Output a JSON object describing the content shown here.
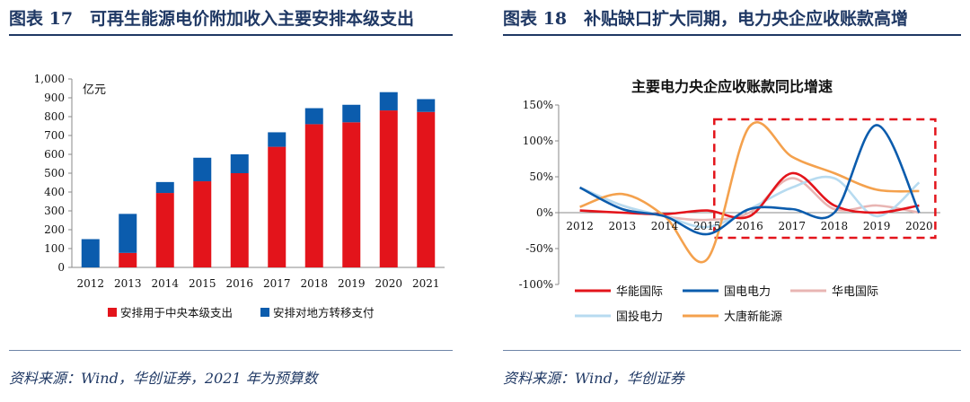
{
  "left": {
    "figure_title": "图表 17　可再生能源电价附加收入主要安排本级支出",
    "source": "资料来源：Wind，华创证券，2021 年为预算数"
  },
  "right": {
    "figure_title": "图表 18　补贴缺口扩大同期，电力央企应收账款高增",
    "source": "资料来源：Wind，华创证券"
  },
  "colors": {
    "red": "#e3141b",
    "blue": "#0b5cad",
    "pink": "#e8b5b3",
    "lightblue": "#b7dbf0",
    "orange": "#f4a14d",
    "navy": "#1f3864"
  },
  "chart_data": [
    {
      "type": "bar",
      "stacked": true,
      "title": "",
      "unit_label": "亿元",
      "categories": [
        "2012",
        "2013",
        "2014",
        "2015",
        "2016",
        "2017",
        "2018",
        "2019",
        "2020",
        "2021"
      ],
      "series": [
        {
          "name": "安排用于中央本级支出",
          "color": "#e3141b",
          "values": [
            0,
            77,
            395,
            457,
            500,
            640,
            760,
            770,
            833,
            825
          ]
        },
        {
          "name": "安排对地方转移支付",
          "color": "#0b5cad",
          "values": [
            150,
            207,
            58,
            125,
            100,
            77,
            85,
            93,
            97,
            68
          ]
        }
      ],
      "ylim": [
        0,
        1000
      ],
      "yticks": [
        "0",
        "100",
        "200",
        "300",
        "400",
        "500",
        "600",
        "700",
        "800",
        "900",
        "1,000"
      ],
      "legend": "bottom"
    },
    {
      "type": "line",
      "title": "主要电力央企应收账款同比增速",
      "x": [
        "2012",
        "2013",
        "2014",
        "2015",
        "2016",
        "2017",
        "2018",
        "2019",
        "2020"
      ],
      "series": [
        {
          "name": "华能国际",
          "color": "#e3141b",
          "values": [
            3,
            0,
            -2,
            3,
            -5,
            55,
            10,
            0,
            10
          ]
        },
        {
          "name": "国电电力",
          "color": "#0b5cad",
          "values": [
            35,
            5,
            -5,
            -30,
            5,
            5,
            0,
            122,
            0
          ]
        },
        {
          "name": "华电国际",
          "color": "#e8b5b3",
          "values": [
            35,
            10,
            -5,
            -10,
            0,
            48,
            5,
            10,
            0
          ]
        },
        {
          "name": "国投电力",
          "color": "#b7dbf0",
          "values": [
            35,
            10,
            -5,
            -20,
            5,
            35,
            48,
            -5,
            42
          ]
        },
        {
          "name": "大唐新能源",
          "color": "#f4a14d",
          "values": [
            8,
            26,
            -5,
            -65,
            120,
            78,
            55,
            32,
            30
          ]
        }
      ],
      "ylim": [
        -100,
        150
      ],
      "yticks": [
        "-100%",
        "-50%",
        "0%",
        "50%",
        "100%",
        "150%"
      ],
      "highlight": "2015–2020",
      "legend": "bottom"
    }
  ]
}
